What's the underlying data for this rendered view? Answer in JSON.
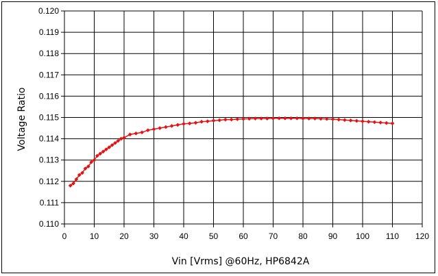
{
  "chart_data": {
    "type": "scatter",
    "title": "",
    "xlabel": "Vin [Vrms] @60Hz, HP6842A",
    "ylabel": "Voltage Ratio",
    "xlim": [
      0,
      120
    ],
    "ylim": [
      0.11,
      0.12
    ],
    "x_ticks": [
      "0",
      "10",
      "20",
      "30",
      "40",
      "50",
      "60",
      "70",
      "80",
      "90",
      "100",
      "110",
      "120"
    ],
    "y_ticks": [
      "0.110",
      "0.111",
      "0.112",
      "0.113",
      "0.114",
      "0.115",
      "0.116",
      "0.117",
      "0.118",
      "0.119",
      "0.120"
    ],
    "grid": true,
    "legend": "none",
    "series": [
      {
        "color": "#e81010",
        "marker": "diamond",
        "x": [
          2,
          3,
          4,
          5,
          6,
          7,
          8,
          9,
          10,
          11,
          12,
          13,
          14,
          15,
          16,
          17,
          18,
          19,
          20,
          22,
          24,
          26,
          28,
          30,
          32,
          34,
          36,
          38,
          40,
          42,
          44,
          46,
          48,
          50,
          52,
          54,
          56,
          58,
          60,
          62,
          64,
          66,
          68,
          70,
          72,
          74,
          76,
          78,
          80,
          82,
          84,
          86,
          88,
          90,
          92,
          94,
          96,
          98,
          100,
          102,
          104,
          106,
          108,
          110
        ],
        "y": [
          0.1118,
          0.1119,
          0.1121,
          0.1123,
          0.1124,
          0.1126,
          0.1127,
          0.1129,
          0.113,
          0.1132,
          0.1133,
          0.1134,
          0.1135,
          0.1136,
          0.1137,
          0.1138,
          0.1139,
          0.114,
          0.11405,
          0.1142,
          0.11425,
          0.1143,
          0.1144,
          0.11445,
          0.1145,
          0.11455,
          0.1146,
          0.11465,
          0.1147,
          0.11472,
          0.11475,
          0.1148,
          0.11482,
          0.11485,
          0.11487,
          0.1149,
          0.1149,
          0.11492,
          0.11493,
          0.11494,
          0.11495,
          0.11495,
          0.11495,
          0.11496,
          0.11496,
          0.11496,
          0.11496,
          0.11496,
          0.11495,
          0.11495,
          0.11495,
          0.11494,
          0.11493,
          0.11492,
          0.1149,
          0.11488,
          0.11486,
          0.11484,
          0.11482,
          0.1148,
          0.11478,
          0.11476,
          0.11474,
          0.11472
        ]
      }
    ]
  }
}
